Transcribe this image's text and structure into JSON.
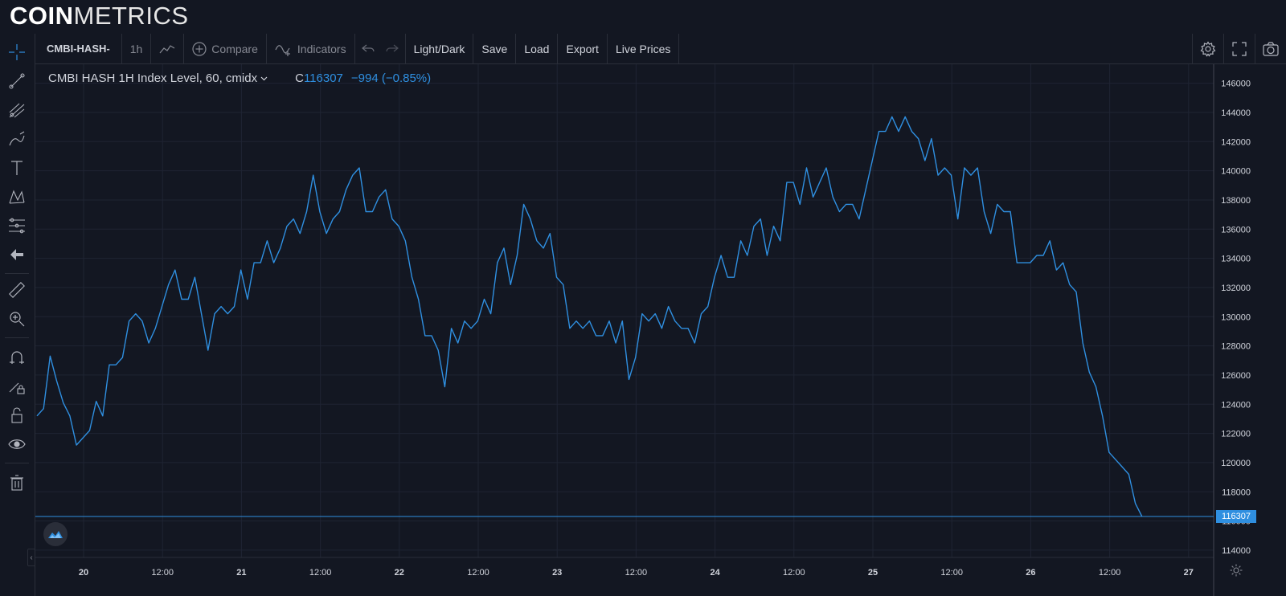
{
  "header": {
    "logo_bold": "COIN",
    "logo_light": "METRICS"
  },
  "toolbar": {
    "symbol": "CMBI-HASH-",
    "interval": "1h",
    "bar_style_icon": "line-chart-icon",
    "compare_label": "Compare",
    "indicators_label": "Indicators",
    "light_dark_label": "Light/Dark",
    "save_label": "Save",
    "load_label": "Load",
    "export_label": "Export",
    "live_prices_label": "Live Prices",
    "right_icons": [
      "gear-icon",
      "fullscreen-icon",
      "camera-icon"
    ]
  },
  "sidebar": {
    "tools": [
      "crosshair-icon",
      "trend-line-icon",
      "pitchfork-icon",
      "brush-icon",
      "text-icon",
      "pattern-icon",
      "fib-icon",
      "back-arrow-icon",
      "ruler-icon",
      "zoom-in-icon",
      "magnet-icon",
      "lock-drawing-icon",
      "unlock-icon",
      "eye-icon",
      "trash-icon"
    ]
  },
  "legend": {
    "title": "CMBI HASH 1H Index Level, 60, cmidx",
    "close_label": "C",
    "close_value": "116307",
    "change": "−994 (−0.85%)"
  },
  "chart_data": {
    "type": "line",
    "title": "CMBI HASH 1H Index Level, 60, cmidx",
    "xlabel": "",
    "ylabel": "",
    "x_ticks": [
      "20",
      "12:00",
      "21",
      "12:00",
      "22",
      "12:00",
      "23",
      "12:00",
      "24",
      "12:00",
      "25",
      "12:00",
      "26",
      "12:00",
      "27"
    ],
    "y_ticks": [
      114000,
      116000,
      118000,
      120000,
      122000,
      124000,
      126000,
      128000,
      130000,
      132000,
      134000,
      136000,
      138000,
      140000,
      142000,
      144000,
      146000
    ],
    "ylim": [
      113500,
      147300
    ],
    "grid": true,
    "last_value": 116307,
    "last_value_label": "116307",
    "line_color": "#2f8fe0",
    "series": [
      {
        "values": [
          123200,
          123700,
          127300,
          125600,
          124100,
          123200,
          121200,
          121700,
          122200,
          124200,
          123200,
          126700,
          126700,
          127200,
          129700,
          130200,
          129700,
          128200,
          129200,
          130700,
          132200,
          133200,
          131200,
          131200,
          132700,
          130200,
          127700,
          130200,
          130700,
          130200,
          130700,
          133200,
          131200,
          133700,
          133700,
          135200,
          133700,
          134700,
          136200,
          136700,
          135700,
          137200,
          139700,
          137200,
          135700,
          136700,
          137200,
          138700,
          139700,
          140200,
          137200,
          137200,
          138200,
          138700,
          136700,
          136200,
          135200,
          132700,
          131200,
          128700,
          128700,
          127700,
          125200,
          129200,
          128200,
          129700,
          129200,
          129700,
          131200,
          130200,
          133700,
          134700,
          132200,
          134200,
          137700,
          136700,
          135200,
          134700,
          135700,
          132700,
          132200,
          129200,
          129700,
          129200,
          129700,
          128700,
          128700,
          129700,
          128200,
          129700,
          125700,
          127200,
          130200,
          129700,
          130200,
          129200,
          130700,
          129700,
          129200,
          129200,
          128200,
          130200,
          130700,
          132700,
          134200,
          132700,
          132700,
          135200,
          134200,
          136200,
          136700,
          134200,
          136200,
          135200,
          139200,
          139200,
          137700,
          140200,
          138200,
          139200,
          140200,
          138200,
          137200,
          137700,
          137700,
          136700,
          138700,
          140700,
          142700,
          142700,
          143700,
          142700,
          143700,
          142700,
          142200,
          140700,
          142200,
          139700,
          140200,
          139700,
          136700,
          140200,
          139700,
          140200,
          137200,
          135700,
          137700,
          137200,
          137200,
          133700,
          133700,
          133700,
          134200,
          134200,
          135200,
          133200,
          133700,
          132200,
          131700,
          128200,
          126200,
          125200,
          123200,
          120700,
          120200,
          119700,
          119200,
          117200,
          116307
        ]
      }
    ]
  }
}
